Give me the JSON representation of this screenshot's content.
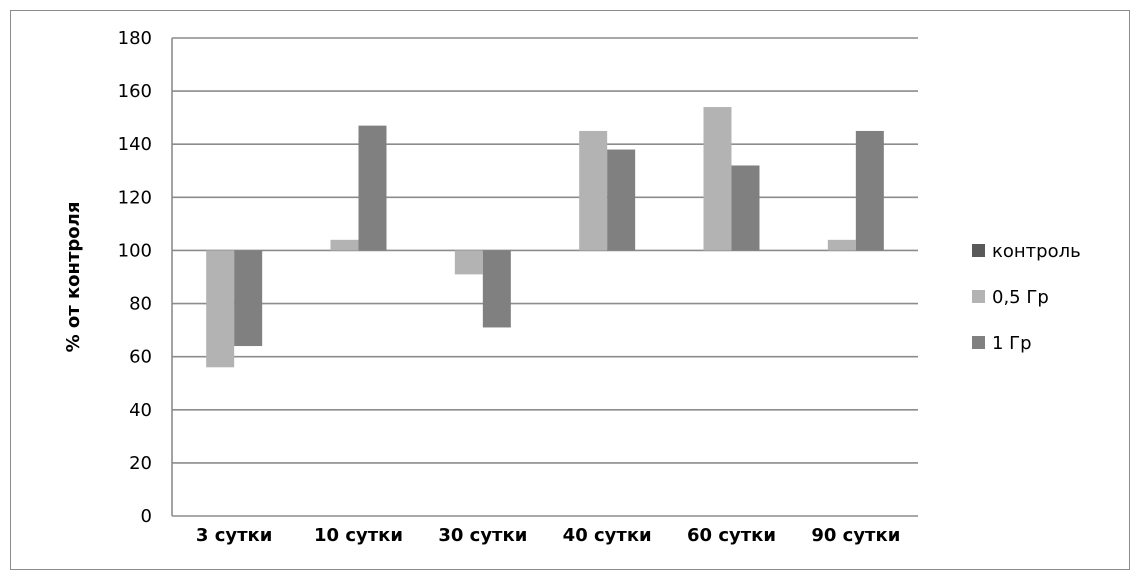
{
  "chart_data": {
    "type": "bar",
    "title": "",
    "xlabel": "",
    "ylabel": "% от контроля",
    "ylim": [
      0,
      180
    ],
    "yticks": [
      0,
      20,
      40,
      60,
      80,
      100,
      120,
      140,
      160,
      180
    ],
    "baseline": 100,
    "grid": true,
    "legend_position": "right",
    "categories": [
      "3 сутки",
      "10 сутки",
      "30 сутки",
      "40 сутки",
      "60 сутки",
      "90 сутки"
    ],
    "series": [
      {
        "name": "контроль",
        "color": "#595959",
        "values": [
          100,
          100,
          100,
          100,
          100,
          100
        ]
      },
      {
        "name": "0,5 Гр",
        "color": "#b3b3b3",
        "values": [
          56,
          104,
          91,
          145,
          154,
          104
        ]
      },
      {
        "name": "1 Гр",
        "color": "#808080",
        "values": [
          64,
          147,
          71,
          138,
          132,
          145
        ]
      }
    ]
  }
}
